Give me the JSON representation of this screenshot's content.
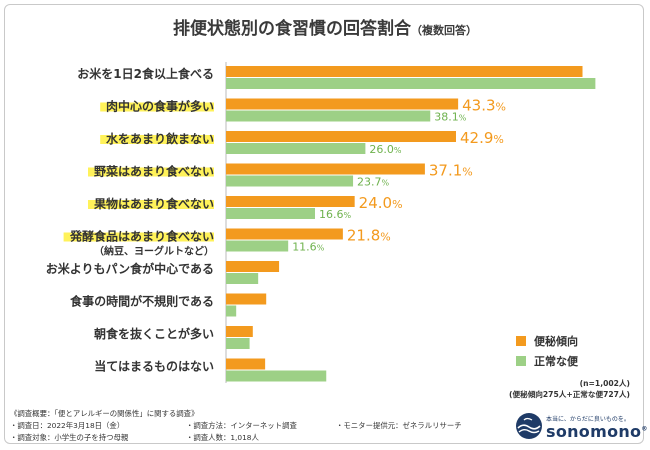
{
  "title": "排便状態別の食習慣の回答割合",
  "subtitle": "（複数回答）",
  "colors": {
    "constipation": "#f39a1e",
    "normal": "#9dd086",
    "highlight": "#fff25a",
    "pct_text_orange": "#f39a1e",
    "pct_text_green": "#6fb24e"
  },
  "chart_data": {
    "type": "bar",
    "orientation": "horizontal",
    "categories": [
      "お米を1日2食以上食べる",
      "肉中心の食事が多い",
      "水をあまり飲まない",
      "野菜はあまり食べない",
      "果物はあまり食べない",
      "発酵食品はあまり食べない",
      "お米よりもパン食が中心である",
      "食事の時間が不規則である",
      "朝食を抜くことが多い",
      "当てはまるものはない"
    ],
    "category_notes": [
      "",
      "",
      "",
      "",
      "",
      "（納豆、ヨーグルトなど）",
      "",
      "",
      "",
      ""
    ],
    "highlighted": [
      false,
      true,
      true,
      true,
      true,
      true,
      false,
      false,
      false,
      false
    ],
    "series": [
      {
        "name": "便秘傾向",
        "values": [
          66.5,
          43.3,
          42.9,
          37.1,
          24.0,
          21.8,
          9.9,
          7.5,
          5.0,
          7.3
        ],
        "labels": [
          "",
          "43.3%",
          "42.9%",
          "37.1%",
          "24.0%",
          "21.8%",
          "",
          "",
          "",
          ""
        ]
      },
      {
        "name": "正常な便",
        "values": [
          68.9,
          38.1,
          26.0,
          23.7,
          16.6,
          11.6,
          6.0,
          1.9,
          4.4,
          18.7
        ],
        "labels": [
          "",
          "38.1%",
          "26.0%",
          "23.7%",
          "16.6%",
          "11.6%",
          "",
          "",
          "",
          ""
        ]
      }
    ],
    "xlim": [
      0,
      72
    ],
    "legend": "bottom-right",
    "grid": false
  },
  "sample": {
    "n": "(n=1,002人)",
    "breakdown": "(便秘傾向275人+正常な便727人)"
  },
  "survey": {
    "overview": "《調査概要：「便とアレルギーの関係性」に関する調査》",
    "date": "・調査日：2022年3月18日（金）",
    "method": "・調査方法：インターネット調査",
    "provider": "・モニター提供元：ゼネラルリサーチ",
    "target": "・調査対象：小学生の子を持つ母親",
    "count": "・調査人数：1,018人"
  },
  "brand": {
    "tagline": "本当に、からだに良いものを。",
    "name": "sonomono",
    "mark": "®"
  }
}
